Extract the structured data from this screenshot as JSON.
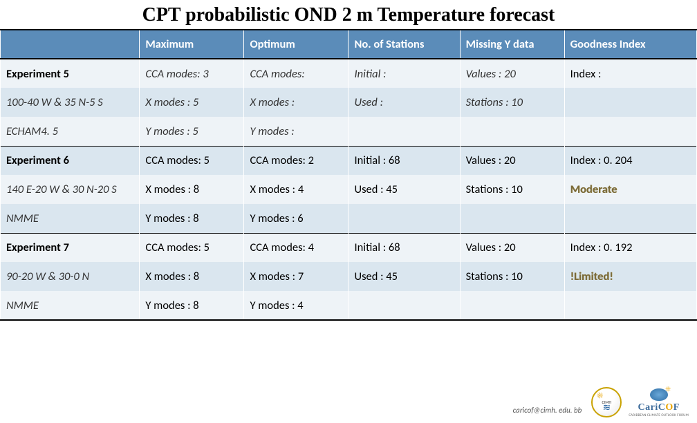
{
  "title": "CPT probabilistic OND 2 m Temperature forecast",
  "columns": [
    "",
    "Maximum",
    "Optimum",
    "No. of Stations",
    "Missing Y data",
    "Goodness Index"
  ],
  "col_widths": [
    "20%",
    "15%",
    "15%",
    "16%",
    "15%",
    "19%"
  ],
  "rows": [
    {
      "sep": true,
      "alt": "odd",
      "c0": {
        "t": "Experiment 5",
        "cls": "rowhead-bold"
      },
      "c1": {
        "t": "CCA modes: 3",
        "cls": "italic"
      },
      "c2": {
        "t": "CCA modes:",
        "cls": "italic"
      },
      "c3": {
        "t": "Initial :",
        "cls": "italic"
      },
      "c4": {
        "t": "Values : 20",
        "cls": "italic"
      },
      "c5": {
        "t": "Index :",
        "cls": "normal"
      }
    },
    {
      "alt": "even",
      "c0": {
        "t": "100-40 W & 35 N-5 S",
        "cls": "rowhead-ital"
      },
      "c1": {
        "t": "X modes : 5",
        "cls": "italic"
      },
      "c2": {
        "t": "X modes :",
        "cls": "italic"
      },
      "c3": {
        "t": "Used :",
        "cls": "italic"
      },
      "c4": {
        "t": "Stations : 10",
        "cls": "italic"
      },
      "c5": {
        "t": "",
        "cls": "normal"
      }
    },
    {
      "alt": "odd",
      "c0": {
        "t": "ECHAM4. 5",
        "cls": "rowhead-ital"
      },
      "c1": {
        "t": "Y modes : 5",
        "cls": "italic"
      },
      "c2": {
        "t": "Y modes :",
        "cls": "italic"
      },
      "c3": {
        "t": "",
        "cls": "normal"
      },
      "c4": {
        "t": "",
        "cls": "normal"
      },
      "c5": {
        "t": "",
        "cls": "normal"
      }
    },
    {
      "sep": true,
      "alt": "even",
      "c0": {
        "t": "Experiment 6",
        "cls": "rowhead-bold"
      },
      "c1": {
        "t": "CCA modes: 5",
        "cls": "normal"
      },
      "c2": {
        "t": "CCA modes: 2",
        "cls": "normal"
      },
      "c3": {
        "t": "Initial : 68",
        "cls": "normal"
      },
      "c4": {
        "t": "Values : 20",
        "cls": "normal"
      },
      "c5": {
        "t": "Index : 0. 204",
        "cls": "normal"
      }
    },
    {
      "alt": "odd",
      "c0": {
        "t": "140 E-20 W & 30 N-20 S",
        "cls": "rowhead-ital"
      },
      "c1": {
        "t": "X modes : 8",
        "cls": "normal"
      },
      "c2": {
        "t": "X modes : 4",
        "cls": "normal"
      },
      "c3": {
        "t": "Used : 45",
        "cls": "normal"
      },
      "c4": {
        "t": "Stations : 10",
        "cls": "normal"
      },
      "c5": {
        "t": "Moderate",
        "cls": "emph"
      }
    },
    {
      "alt": "even",
      "c0": {
        "t": "NMME",
        "cls": "rowhead-ital"
      },
      "c1": {
        "t": "Y modes : 8",
        "cls": "normal"
      },
      "c2": {
        "t": "Y modes : 6",
        "cls": "normal"
      },
      "c3": {
        "t": "",
        "cls": "normal"
      },
      "c4": {
        "t": "",
        "cls": "normal"
      },
      "c5": {
        "t": "",
        "cls": "normal"
      }
    },
    {
      "sep": true,
      "alt": "odd",
      "c0": {
        "t": "Experiment 7",
        "cls": "rowhead-bold"
      },
      "c1": {
        "t": "CCA modes: 5",
        "cls": "normal"
      },
      "c2": {
        "t": "CCA modes: 4",
        "cls": "normal"
      },
      "c3": {
        "t": "Initial : 68",
        "cls": "normal"
      },
      "c4": {
        "t": "Values : 20",
        "cls": "normal"
      },
      "c5": {
        "t": "Index : 0. 192",
        "cls": "normal"
      }
    },
    {
      "alt": "even",
      "c0": {
        "t": "90-20 W & 30-0 N",
        "cls": "rowhead-ital"
      },
      "c1": {
        "t": "X modes : 8",
        "cls": "normal"
      },
      "c2": {
        "t": "X modes : 7",
        "cls": "normal"
      },
      "c3": {
        "t": "Used : 45",
        "cls": "normal"
      },
      "c4": {
        "t": "Stations : 10",
        "cls": "normal"
      },
      "c5": {
        "t": "!Limited!",
        "cls": "emph"
      }
    },
    {
      "last": true,
      "alt": "odd",
      "c0": {
        "t": "NMME",
        "cls": "rowhead-ital"
      },
      "c1": {
        "t": "Y modes : 8",
        "cls": "normal"
      },
      "c2": {
        "t": "Y modes : 4",
        "cls": "normal"
      },
      "c3": {
        "t": "",
        "cls": "normal"
      },
      "c4": {
        "t": "",
        "cls": "normal"
      },
      "c5": {
        "t": "",
        "cls": "normal"
      }
    }
  ],
  "footer": {
    "email": "caricof@cimh. edu. bb",
    "cimh_label": "CIMH",
    "caricof": "CariCOF",
    "caricof_sub": "CARIBBEAN CLIMATE OUTLOOK FORUM"
  },
  "colors": {
    "header_bg": "#5b8cb9",
    "row_odd": "#eef3f7",
    "row_even": "#dae6ef",
    "emph": "#7a6a3a"
  }
}
